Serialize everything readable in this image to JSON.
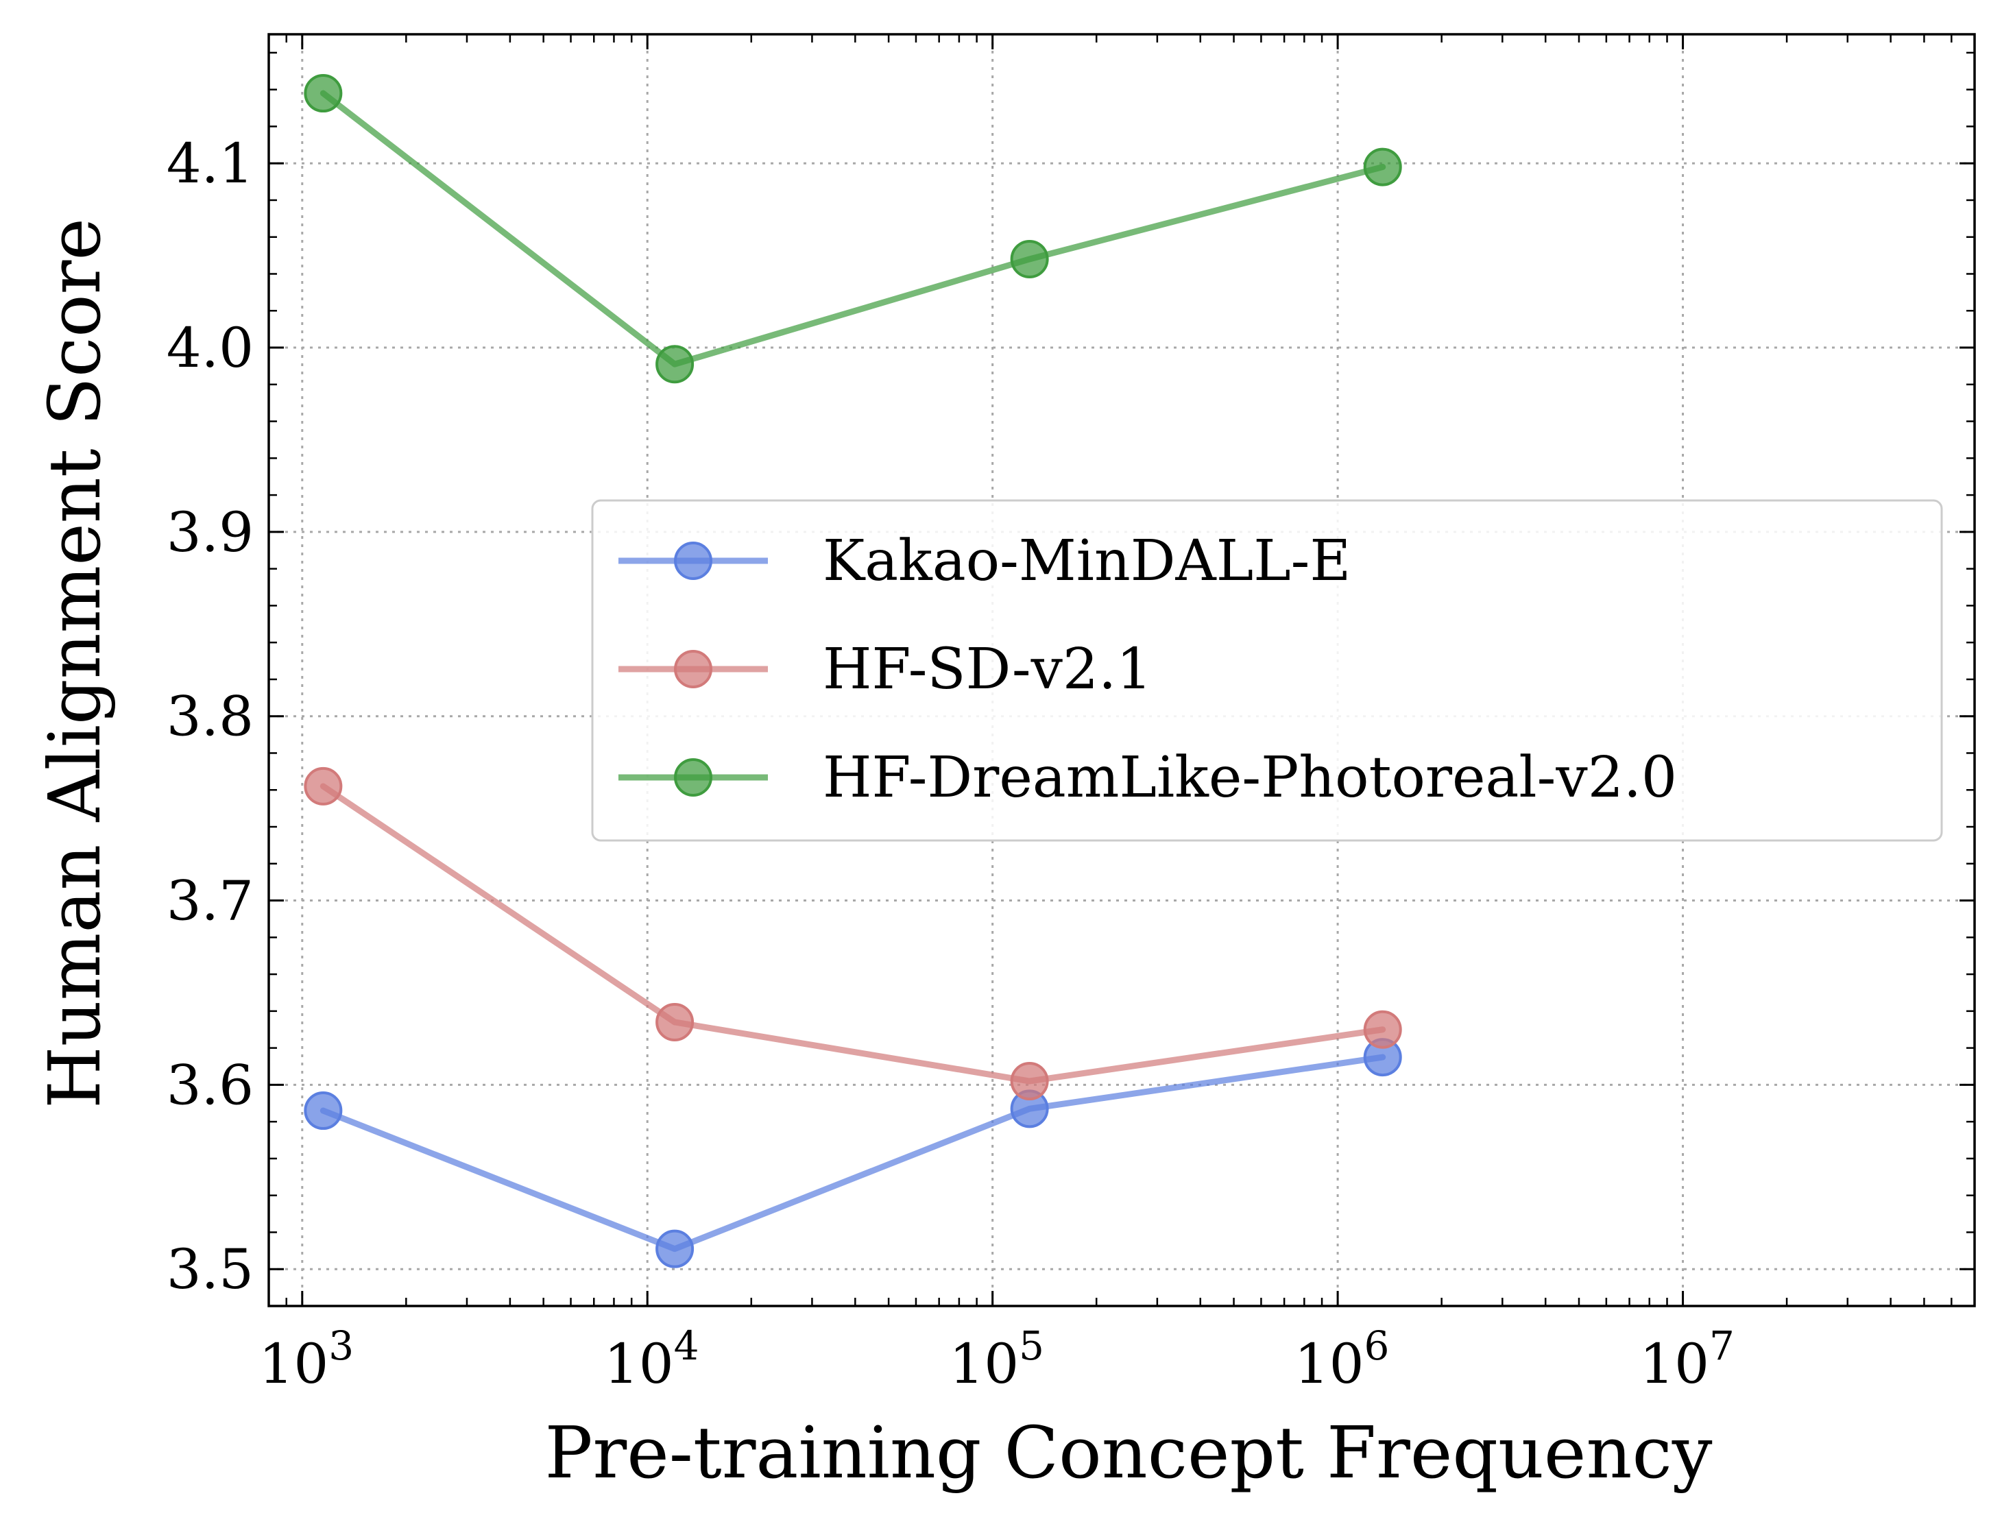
{
  "chart_data": {
    "type": "line",
    "xlabel": "Pre-training Concept Frequency",
    "ylabel": "Human Alignment Score",
    "x_scale": "log",
    "xlim": [
      800,
      70000000
    ],
    "ylim": [
      3.48,
      4.17
    ],
    "x_ticks": [
      1000,
      10000,
      100000,
      1000000,
      10000000
    ],
    "x_tick_labels": [
      {
        "base": "10",
        "exp": "3"
      },
      {
        "base": "10",
        "exp": "4"
      },
      {
        "base": "10",
        "exp": "5"
      },
      {
        "base": "10",
        "exp": "6"
      },
      {
        "base": "10",
        "exp": "7"
      }
    ],
    "y_ticks": [
      3.5,
      3.6,
      3.7,
      3.8,
      3.9,
      4.0,
      4.1
    ],
    "y_tick_labels": [
      "3.5",
      "3.6",
      "3.7",
      "3.8",
      "3.9",
      "4.0",
      "4.1"
    ],
    "grid": true,
    "legend_position": "center-right",
    "series": [
      {
        "name": "Kakao-MinDALL-E",
        "color": "#5b7fe0",
        "x": [
          1150,
          12000,
          128000,
          1350000
        ],
        "y": [
          3.586,
          3.511,
          3.587,
          3.615
        ]
      },
      {
        "name": "HF-SD-v2.1",
        "color": "#d27a7a",
        "x": [
          1150,
          12000,
          128000,
          1350000
        ],
        "y": [
          3.762,
          3.634,
          3.602,
          3.63
        ]
      },
      {
        "name": "HF-DreamLike-Photoreal-v2.0",
        "color": "#3f9c3f",
        "x": [
          1150,
          12000,
          128000,
          1350000
        ],
        "y": [
          4.138,
          3.991,
          4.048,
          4.098
        ]
      }
    ]
  }
}
